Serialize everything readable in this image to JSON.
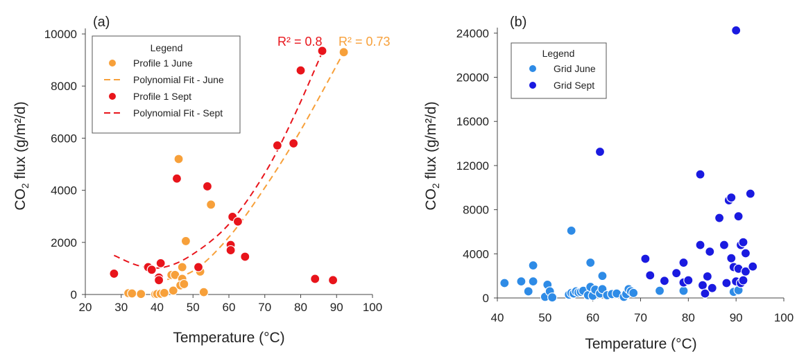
{
  "chart_data": [
    {
      "type": "scatter",
      "panel_label": "(a)",
      "xlabel": "Temperature (°C)",
      "ylabel_main": "CO",
      "ylabel_sub": "2",
      "ylabel_rest": " flux (g/m²/d)",
      "xlim": [
        20,
        100
      ],
      "ylim": [
        0,
        10000
      ],
      "xticks": [
        20,
        30,
        40,
        50,
        60,
        70,
        80,
        90,
        100
      ],
      "yticks": [
        0,
        2000,
        4000,
        6000,
        8000,
        10000
      ],
      "grid": false,
      "legend": {
        "title": "Legend",
        "position": "top-left",
        "entries": [
          {
            "label": "Profile 1 June",
            "kind": "marker",
            "color": "#f7a03a"
          },
          {
            "label": "Polynomial Fit - June",
            "kind": "dash",
            "color": "#f7a03a"
          },
          {
            "label": "Profile 1 Sept",
            "kind": "marker",
            "color": "#e8141b"
          },
          {
            "label": "Polynomial Fit - Sept",
            "kind": "dash",
            "color": "#e8141b"
          }
        ]
      },
      "series": [
        {
          "name": "Profile 1 June",
          "color": "#f7a03a",
          "points": [
            [
              32,
              50
            ],
            [
              33,
              40
            ],
            [
              35.5,
              20
            ],
            [
              39.5,
              10
            ],
            [
              40,
              20
            ],
            [
              41,
              30
            ],
            [
              42,
              60
            ],
            [
              44,
              750
            ],
            [
              44.5,
              150
            ],
            [
              45,
              750
            ],
            [
              46,
              5200
            ],
            [
              47,
              1050
            ],
            [
              47,
              600
            ],
            [
              46.5,
              350
            ],
            [
              47.5,
              400
            ],
            [
              48,
              2050
            ],
            [
              52,
              880
            ],
            [
              53,
              90
            ],
            [
              55,
              3450
            ],
            [
              92,
              9300
            ]
          ]
        },
        {
          "name": "Profile 1 Sept",
          "color": "#e8141b",
          "points": [
            [
              28,
              800
            ],
            [
              37.5,
              1050
            ],
            [
              38.5,
              950
            ],
            [
              40.5,
              650
            ],
            [
              41,
              1200
            ],
            [
              40.5,
              550
            ],
            [
              45.5,
              4450
            ],
            [
              51.5,
              1050
            ],
            [
              54,
              4150
            ],
            [
              60.5,
              1900
            ],
            [
              60.5,
              1700
            ],
            [
              61,
              2980
            ],
            [
              62.5,
              2800
            ],
            [
              64.5,
              1450
            ],
            [
              73.5,
              5720
            ],
            [
              78,
              5800
            ],
            [
              80,
              8600
            ],
            [
              84,
              600
            ],
            [
              86,
              9350
            ],
            [
              89,
              550
            ]
          ]
        },
        {
          "name": "Polynomial Fit - June",
          "color": "#f7a03a",
          "line": true,
          "points": [
            [
              40,
              500
            ],
            [
              50,
              900
            ],
            [
              60,
              2200
            ],
            [
              70,
              4100
            ],
            [
              80,
              6300
            ],
            [
              92,
              9300
            ]
          ]
        },
        {
          "name": "Polynomial Fit - Sept",
          "color": "#e8141b",
          "line": true,
          "points": [
            [
              28,
              1500
            ],
            [
              35,
              1100
            ],
            [
              42,
              1050
            ],
            [
              50,
              1550
            ],
            [
              60,
              2700
            ],
            [
              70,
              4650
            ],
            [
              78,
              6800
            ],
            [
              86,
              9300
            ]
          ]
        }
      ],
      "annotations": [
        {
          "text": "R² = 0.8",
          "color": "#e8141b"
        },
        {
          "text": "R² = 0.73",
          "color": "#f7a03a"
        }
      ]
    },
    {
      "type": "scatter",
      "panel_label": "(b)",
      "xlabel": "Temperature (°C)",
      "ylabel_main": "CO",
      "ylabel_sub": "2",
      "ylabel_rest": " flux (g/m²/d)",
      "xlim": [
        40,
        100
      ],
      "ylim": [
        0,
        26000
      ],
      "xticks": [
        40,
        50,
        60,
        70,
        80,
        90,
        100
      ],
      "yticks": [
        0,
        4000,
        8000,
        12000,
        16000,
        20000,
        24000
      ],
      "grid": false,
      "legend": {
        "title": "Legend",
        "position": "top-left",
        "entries": [
          {
            "label": "Grid June",
            "kind": "marker",
            "color": "#2e8be6"
          },
          {
            "label": "Grid Sept",
            "kind": "marker",
            "color": "#1a1ae0"
          }
        ]
      },
      "series": [
        {
          "name": "Grid June",
          "color": "#2e8be6",
          "points": [
            [
              41.5,
              1350
            ],
            [
              45,
              1500
            ],
            [
              46.5,
              600
            ],
            [
              47.5,
              2950
            ],
            [
              47.5,
              1500
            ],
            [
              50,
              100
            ],
            [
              50.5,
              1200
            ],
            [
              51,
              600
            ],
            [
              51.5,
              50
            ],
            [
              55,
              300
            ],
            [
              55.5,
              6100
            ],
            [
              55.5,
              450
            ],
            [
              56,
              400
            ],
            [
              56.5,
              600
            ],
            [
              57,
              500
            ],
            [
              57.5,
              550
            ],
            [
              58,
              650
            ],
            [
              59,
              250
            ],
            [
              59.5,
              1000
            ],
            [
              59.5,
              3200
            ],
            [
              60,
              200
            ],
            [
              60.5,
              750
            ],
            [
              61.5,
              400
            ],
            [
              62,
              800
            ],
            [
              62,
              2000
            ],
            [
              63,
              250
            ],
            [
              64,
              350
            ],
            [
              65,
              400
            ],
            [
              66.5,
              100
            ],
            [
              67,
              350
            ],
            [
              67.5,
              800
            ],
            [
              68,
              600
            ],
            [
              68.5,
              450
            ],
            [
              74,
              650
            ],
            [
              79,
              650
            ],
            [
              89.5,
              550
            ],
            [
              90.5,
              700
            ]
          ]
        },
        {
          "name": "Grid Sept",
          "color": "#1a1ae0",
          "points": [
            [
              61.5,
              13250
            ],
            [
              71,
              3550
            ],
            [
              72,
              2050
            ],
            [
              75,
              1550
            ],
            [
              77.5,
              2250
            ],
            [
              79,
              3200
            ],
            [
              79,
              1400
            ],
            [
              80,
              1600
            ],
            [
              82.5,
              11200
            ],
            [
              82.5,
              4800
            ],
            [
              83,
              1150
            ],
            [
              83.5,
              400
            ],
            [
              84,
              1950
            ],
            [
              84.5,
              4200
            ],
            [
              85,
              900
            ],
            [
              86.5,
              7250
            ],
            [
              87.5,
              4800
            ],
            [
              88,
              1350
            ],
            [
              88.5,
              8850
            ],
            [
              89,
              9100
            ],
            [
              89,
              3600
            ],
            [
              89.5,
              2800
            ],
            [
              90,
              24250
            ],
            [
              90,
              1500
            ],
            [
              90.5,
              7400
            ],
            [
              90.5,
              2650
            ],
            [
              91,
              4800
            ],
            [
              91,
              1350
            ],
            [
              91.5,
              1600
            ],
            [
              91.5,
              5050
            ],
            [
              92,
              4050
            ],
            [
              92,
              2400
            ],
            [
              93,
              9450
            ],
            [
              93.5,
              2850
            ]
          ]
        }
      ]
    }
  ]
}
